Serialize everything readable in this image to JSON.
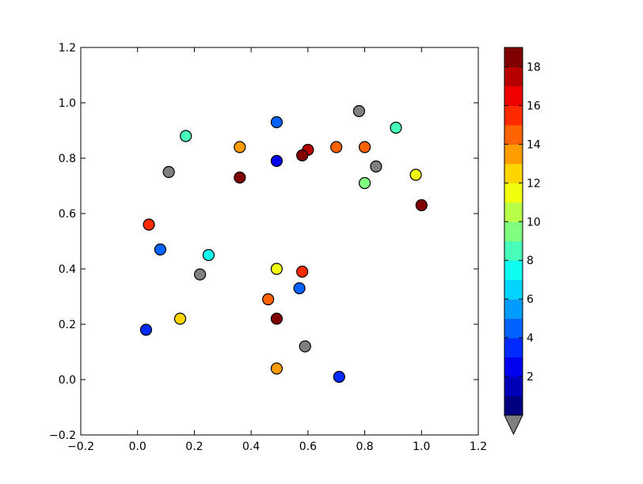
{
  "chart_data": {
    "type": "scatter",
    "title": "",
    "xlabel": "",
    "ylabel": "",
    "xlim": [
      -0.2,
      1.2
    ],
    "ylim": [
      -0.2,
      1.2
    ],
    "xticks": [
      "−0.2",
      "0.0",
      "0.2",
      "0.4",
      "0.6",
      "0.8",
      "1.0",
      "1.2"
    ],
    "yticks": [
      "−0.2",
      "0.0",
      "0.2",
      "0.4",
      "0.6",
      "0.8",
      "1.0",
      "1.2"
    ],
    "grid": false,
    "colormap": "jet",
    "colorbar": {
      "min": 0,
      "max": 19,
      "levels": 19,
      "extend": "min",
      "under_color": "#808080",
      "ticks": [
        "2",
        "4",
        "6",
        "8",
        "10",
        "12",
        "14",
        "16",
        "18"
      ]
    },
    "points": [
      {
        "x": 0.49,
        "y": 0.93,
        "c": 4.5
      },
      {
        "x": 0.49,
        "y": 0.79,
        "c": 2.5
      },
      {
        "x": 0.78,
        "y": 0.97,
        "c": -1
      },
      {
        "x": 0.91,
        "y": 0.91,
        "c": 8.5
      },
      {
        "x": 0.17,
        "y": 0.88,
        "c": 8.5
      },
      {
        "x": 0.36,
        "y": 0.84,
        "c": 13.5
      },
      {
        "x": 0.6,
        "y": 0.83,
        "c": 17.5
      },
      {
        "x": 0.58,
        "y": 0.81,
        "c": 18.5
      },
      {
        "x": 0.7,
        "y": 0.84,
        "c": 14.5
      },
      {
        "x": 0.8,
        "y": 0.84,
        "c": 14.5
      },
      {
        "x": 0.84,
        "y": 0.77,
        "c": -1
      },
      {
        "x": 0.98,
        "y": 0.74,
        "c": 11.5
      },
      {
        "x": 0.11,
        "y": 0.75,
        "c": -1
      },
      {
        "x": 0.36,
        "y": 0.73,
        "c": 18.5
      },
      {
        "x": 0.8,
        "y": 0.71,
        "c": 9.5
      },
      {
        "x": 1.0,
        "y": 0.63,
        "c": 18.9
      },
      {
        "x": 0.04,
        "y": 0.56,
        "c": 15.5
      },
      {
        "x": 0.08,
        "y": 0.47,
        "c": 4.5
      },
      {
        "x": 0.25,
        "y": 0.45,
        "c": 7.5
      },
      {
        "x": 0.22,
        "y": 0.38,
        "c": -1
      },
      {
        "x": 0.49,
        "y": 0.4,
        "c": 11.5
      },
      {
        "x": 0.58,
        "y": 0.39,
        "c": 15.5
      },
      {
        "x": 0.57,
        "y": 0.33,
        "c": 4.5
      },
      {
        "x": 0.46,
        "y": 0.29,
        "c": 14.5
      },
      {
        "x": 0.15,
        "y": 0.22,
        "c": 12.5
      },
      {
        "x": 0.49,
        "y": 0.22,
        "c": 18.9
      },
      {
        "x": 0.03,
        "y": 0.18,
        "c": 3.5
      },
      {
        "x": 0.59,
        "y": 0.12,
        "c": -1
      },
      {
        "x": 0.49,
        "y": 0.04,
        "c": 13.5
      },
      {
        "x": 0.71,
        "y": 0.01,
        "c": 3.0
      }
    ]
  }
}
